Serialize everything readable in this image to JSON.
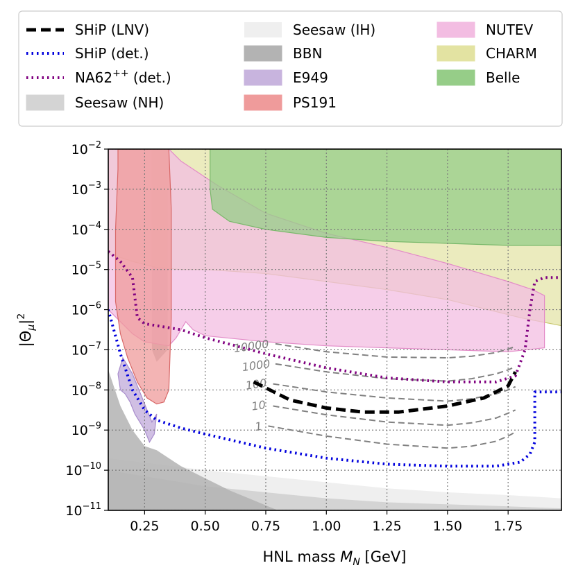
{
  "chart_data": {
    "type": "line",
    "title": "",
    "xlabel_prefix": "HNL mass ",
    "xlabel_sym": "M",
    "xlabel_sub": "N",
    "xlabel_unit": " [GeV]",
    "ylabel_base": "|Θ",
    "ylabel_sub": "μ",
    "ylabel_close": "|",
    "ylabel_sup": "2",
    "xlim": [
      0.1,
      1.97
    ],
    "ylim_log10": [
      -11,
      -2
    ],
    "grid": true,
    "x_ticks": [
      {
        "v": 0.25,
        "label": "0.25"
      },
      {
        "v": 0.5,
        "label": "0.50"
      },
      {
        "v": 0.75,
        "label": "0.75"
      },
      {
        "v": 1.0,
        "label": "1.00"
      },
      {
        "v": 1.25,
        "label": "1.25"
      },
      {
        "v": 1.5,
        "label": "1.50"
      },
      {
        "v": 1.75,
        "label": "1.75"
      }
    ],
    "y_ticks": [
      {
        "v": -11,
        "base": "10",
        "exp": "−11"
      },
      {
        "v": -10,
        "base": "10",
        "exp": "−10"
      },
      {
        "v": -9,
        "base": "10",
        "exp": "−9"
      },
      {
        "v": -8,
        "base": "10",
        "exp": "−8"
      },
      {
        "v": -7,
        "base": "10",
        "exp": "−7"
      },
      {
        "v": -6,
        "base": "10",
        "exp": "−6"
      },
      {
        "v": -5,
        "base": "10",
        "exp": "−5"
      },
      {
        "v": -4,
        "base": "10",
        "exp": "−4"
      },
      {
        "v": -3,
        "base": "10",
        "exp": "−3"
      },
      {
        "v": -2,
        "base": "10",
        "exp": "−2"
      }
    ],
    "legend_position": "top, outside",
    "legend": [
      {
        "key": "ship_lnv",
        "label": "SHiP (LNV)",
        "kind": "line",
        "color": "#000000",
        "dash": "dashed"
      },
      {
        "key": "ship_det",
        "label": "SHiP (det.)",
        "kind": "line",
        "color": "#0000dd",
        "dash": "dotted"
      },
      {
        "key": "na62",
        "label": "NA62",
        "label_sup": "++",
        "label_after": " (det.)",
        "kind": "line",
        "color": "#800080",
        "dash": "dotted"
      },
      {
        "key": "seesaw_nh",
        "label": "Seesaw (NH)",
        "kind": "patch",
        "color": "#d4d4d4"
      },
      {
        "key": "seesaw_ih",
        "label": "Seesaw (IH)",
        "kind": "patch",
        "color": "#efefef"
      },
      {
        "key": "bbn",
        "label": "BBN",
        "kind": "patch",
        "color": "#b3b3b3"
      },
      {
        "key": "e949",
        "label": "E949",
        "kind": "patch",
        "color": "#c8b4de"
      },
      {
        "key": "ps191",
        "label": "PS191",
        "kind": "patch",
        "color": "#ef9b9b"
      },
      {
        "key": "nutev",
        "label": "NUTEV",
        "kind": "patch",
        "color": "#f3bde2"
      },
      {
        "key": "charm",
        "label": "CHARM",
        "kind": "patch",
        "color": "#e3e3a2"
      },
      {
        "key": "belle",
        "label": "Belle",
        "kind": "patch",
        "color": "#96cd88"
      }
    ],
    "regions": [
      {
        "key": "seesaw_ih",
        "color": "#efefef",
        "opacity": 1.0,
        "edge": "none",
        "points": [
          [
            0.1,
            -9.7
          ],
          [
            0.3,
            -9.85
          ],
          [
            0.5,
            -10.0
          ],
          [
            0.75,
            -10.15
          ],
          [
            1.0,
            -10.3
          ],
          [
            1.25,
            -10.45
          ],
          [
            1.5,
            -10.55
          ],
          [
            1.75,
            -10.62
          ],
          [
            1.97,
            -10.7
          ],
          [
            1.97,
            -11
          ],
          [
            0.1,
            -11
          ]
        ]
      },
      {
        "key": "seesaw_nh",
        "color": "#d4d4d4",
        "opacity": 1.0,
        "edge": "none",
        "points": [
          [
            0.1,
            -10.0
          ],
          [
            0.3,
            -10.2
          ],
          [
            0.5,
            -10.4
          ],
          [
            0.75,
            -10.55
          ],
          [
            1.0,
            -10.7
          ],
          [
            1.25,
            -10.8
          ],
          [
            1.5,
            -10.85
          ],
          [
            1.75,
            -10.9
          ],
          [
            1.97,
            -10.95
          ],
          [
            1.97,
            -11
          ],
          [
            0.1,
            -11
          ]
        ]
      },
      {
        "key": "bbn",
        "color": "#b3b3b3",
        "opacity": 0.85,
        "edge": "none",
        "points": [
          [
            0.1,
            -7.5
          ],
          [
            0.15,
            -8.4
          ],
          [
            0.2,
            -9.0
          ],
          [
            0.25,
            -9.4
          ],
          [
            0.3,
            -9.5
          ],
          [
            0.4,
            -9.9
          ],
          [
            0.5,
            -10.2
          ],
          [
            0.6,
            -10.5
          ],
          [
            0.7,
            -10.75
          ],
          [
            0.8,
            -11
          ],
          [
            0.1,
            -11
          ]
        ]
      },
      {
        "key": "bbn_strip",
        "color": "#b3b3b3",
        "opacity": 0.8,
        "edge": "none",
        "points": [
          [
            0.28,
            -2
          ],
          [
            0.345,
            -2
          ],
          [
            0.345,
            -7.0
          ],
          [
            0.3,
            -7.3
          ],
          [
            0.28,
            -7.0
          ]
        ]
      },
      {
        "key": "charm",
        "color": "#e3e3a2",
        "opacity": 0.7,
        "edge": "#c8c870",
        "points": [
          [
            0.1,
            -2
          ],
          [
            1.97,
            -2
          ],
          [
            1.97,
            -6.4
          ],
          [
            1.8,
            -6.2
          ],
          [
            1.5,
            -5.75
          ],
          [
            1.25,
            -5.5
          ],
          [
            1.0,
            -5.3
          ],
          [
            0.75,
            -5.1
          ],
          [
            0.5,
            -5.0
          ],
          [
            0.4,
            -5.0
          ],
          [
            0.3,
            -4.95
          ],
          [
            0.2,
            -4.8
          ],
          [
            0.1,
            -4.6
          ]
        ]
      },
      {
        "key": "nutev",
        "color": "#f3bde2",
        "opacity": 0.75,
        "edge": "#e38cc8",
        "points": [
          [
            0.1,
            -2
          ],
          [
            0.35,
            -2
          ],
          [
            0.4,
            -2.3
          ],
          [
            0.55,
            -2.9
          ],
          [
            0.75,
            -3.6
          ],
          [
            1.0,
            -4.1
          ],
          [
            1.25,
            -4.45
          ],
          [
            1.5,
            -4.85
          ],
          [
            1.75,
            -5.3
          ],
          [
            1.85,
            -5.5
          ],
          [
            1.9,
            -5.65
          ],
          [
            1.9,
            -6.95
          ],
          [
            1.75,
            -7.05
          ],
          [
            1.5,
            -7.0
          ],
          [
            1.25,
            -6.95
          ],
          [
            1.0,
            -6.9
          ],
          [
            0.75,
            -6.8
          ],
          [
            0.5,
            -6.65
          ],
          [
            0.45,
            -6.5
          ],
          [
            0.42,
            -6.3
          ],
          [
            0.38,
            -6.7
          ],
          [
            0.35,
            -6.9
          ],
          [
            0.3,
            -6.85
          ],
          [
            0.25,
            -6.8
          ],
          [
            0.2,
            -6.6
          ],
          [
            0.15,
            -6.3
          ],
          [
            0.1,
            -6.0
          ]
        ]
      },
      {
        "key": "belle",
        "color": "#96cd88",
        "opacity": 0.75,
        "edge": "#78b86a",
        "points": [
          [
            0.52,
            -2
          ],
          [
            1.97,
            -2
          ],
          [
            1.97,
            -4.4
          ],
          [
            1.75,
            -4.4
          ],
          [
            1.5,
            -4.35
          ],
          [
            1.25,
            -4.3
          ],
          [
            1.0,
            -4.2
          ],
          [
            0.75,
            -4.0
          ],
          [
            0.6,
            -3.8
          ],
          [
            0.53,
            -3.5
          ],
          [
            0.52,
            -3.0
          ]
        ]
      },
      {
        "key": "e949",
        "color": "#c8b4de",
        "opacity": 0.85,
        "edge": "#a88ccc",
        "points": [
          [
            0.16,
            -7.2
          ],
          [
            0.18,
            -7.4
          ],
          [
            0.2,
            -7.6
          ],
          [
            0.22,
            -7.9
          ],
          [
            0.24,
            -8.2
          ],
          [
            0.26,
            -8.5
          ],
          [
            0.28,
            -8.8
          ],
          [
            0.3,
            -8.6
          ],
          [
            0.29,
            -9.1
          ],
          [
            0.27,
            -9.3
          ],
          [
            0.25,
            -9.0
          ],
          [
            0.23,
            -8.8
          ],
          [
            0.21,
            -8.6
          ],
          [
            0.19,
            -8.3
          ],
          [
            0.17,
            -8.1
          ],
          [
            0.15,
            -8.0
          ],
          [
            0.14,
            -7.6
          ]
        ]
      },
      {
        "key": "ps191",
        "color": "#ef9b9b",
        "opacity": 0.75,
        "edge": "#d86868",
        "points": [
          [
            0.14,
            -2
          ],
          [
            0.35,
            -2
          ],
          [
            0.36,
            -3.5
          ],
          [
            0.36,
            -6.2
          ],
          [
            0.35,
            -8.0
          ],
          [
            0.33,
            -8.3
          ],
          [
            0.3,
            -8.35
          ],
          [
            0.26,
            -8.2
          ],
          [
            0.22,
            -7.8
          ],
          [
            0.18,
            -7.2
          ],
          [
            0.15,
            -6.6
          ],
          [
            0.13,
            -5.8
          ],
          [
            0.13,
            -4.0
          ],
          [
            0.14,
            -2.5
          ]
        ]
      }
    ],
    "series": [
      {
        "key": "ship_det",
        "name": "SHiP (det.)",
        "color": "#0000dd",
        "dash": "dotted",
        "x": [
          0.1,
          0.15,
          0.2,
          0.25,
          0.3,
          0.4,
          0.5,
          0.75,
          1.0,
          1.25,
          1.5,
          1.7,
          1.8,
          1.84,
          1.86,
          1.86,
          1.97
        ],
        "y": [
          -6.0,
          -7.1,
          -8.0,
          -8.5,
          -8.75,
          -8.95,
          -9.1,
          -9.45,
          -9.7,
          -9.85,
          -9.9,
          -9.9,
          -9.8,
          -9.6,
          -9.3,
          -8.05,
          -8.05
        ]
      },
      {
        "key": "na62",
        "name": "NA62++ (det.)",
        "color": "#800080",
        "dash": "dotted",
        "x": [
          0.1,
          0.15,
          0.2,
          0.22,
          0.25,
          0.3,
          0.4,
          0.5,
          0.75,
          1.0,
          1.25,
          1.5,
          1.7,
          1.78,
          1.82,
          1.84,
          1.86,
          1.9,
          1.97
        ],
        "y": [
          -4.55,
          -4.8,
          -5.2,
          -6.2,
          -6.35,
          -6.4,
          -6.5,
          -6.7,
          -7.1,
          -7.45,
          -7.7,
          -7.8,
          -7.8,
          -7.65,
          -7.0,
          -6.0,
          -5.3,
          -5.2,
          -5.2
        ]
      },
      {
        "key": "ship_lnv",
        "name": "SHiP (LNV)",
        "color": "#000000",
        "dash": "dashed",
        "x": [
          0.7,
          0.75,
          0.85,
          1.0,
          1.15,
          1.3,
          1.5,
          1.65,
          1.75,
          1.78
        ],
        "y": [
          -7.8,
          -7.95,
          -8.25,
          -8.45,
          -8.55,
          -8.55,
          -8.4,
          -8.2,
          -7.9,
          -7.55
        ]
      }
    ],
    "contours": [
      {
        "label": "10000",
        "lx": 0.69,
        "ly": -6.9,
        "x": [
          0.79,
          1.0,
          1.25,
          1.5,
          1.6,
          1.7,
          1.75,
          1.78
        ],
        "y": [
          -6.85,
          -7.05,
          -7.18,
          -7.2,
          -7.16,
          -7.07,
          -6.98,
          -6.92
        ]
      },
      {
        "label": "1000",
        "lx": 0.71,
        "ly": -7.38,
        "x": [
          0.79,
          1.0,
          1.25,
          1.5,
          1.6,
          1.7,
          1.75,
          1.78
        ],
        "y": [
          -7.35,
          -7.55,
          -7.72,
          -7.78,
          -7.72,
          -7.6,
          -7.5,
          -7.42
        ]
      },
      {
        "label": "100",
        "lx": 0.71,
        "ly": -7.85,
        "x": [
          0.78,
          1.0,
          1.25,
          1.5,
          1.6,
          1.7,
          1.75,
          1.78
        ],
        "y": [
          -7.85,
          -8.05,
          -8.2,
          -8.28,
          -8.22,
          -8.1,
          -8.0,
          -7.92
        ]
      },
      {
        "label": "10",
        "lx": 0.72,
        "ly": -8.38,
        "x": [
          0.78,
          1.0,
          1.25,
          1.5,
          1.6,
          1.7,
          1.75,
          1.78
        ],
        "y": [
          -8.4,
          -8.62,
          -8.8,
          -8.88,
          -8.82,
          -8.7,
          -8.58,
          -8.5
        ]
      },
      {
        "label": "1",
        "lx": 0.72,
        "ly": -8.9,
        "x": [
          0.76,
          1.0,
          1.25,
          1.5,
          1.6,
          1.7,
          1.75,
          1.78
        ],
        "y": [
          -8.9,
          -9.15,
          -9.35,
          -9.45,
          -9.4,
          -9.28,
          -9.15,
          -9.05
        ]
      }
    ]
  }
}
